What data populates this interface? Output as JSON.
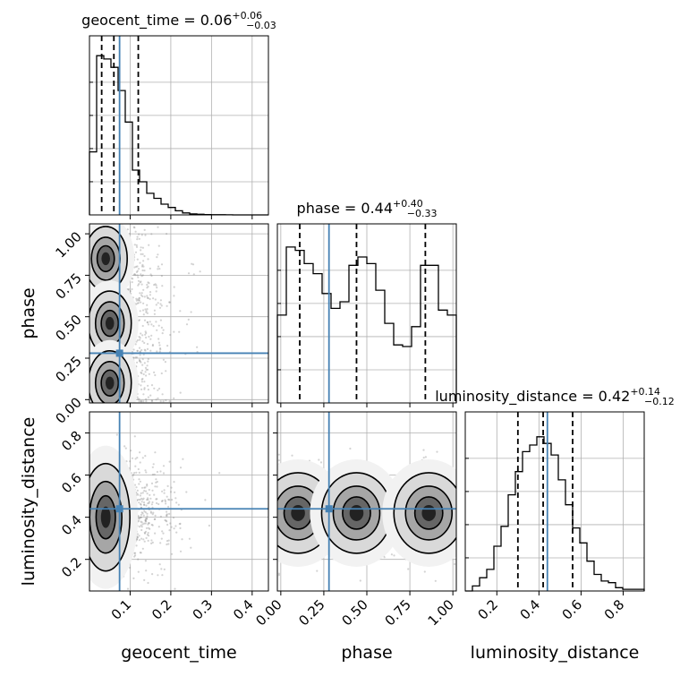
{
  "chart_data": [
    {
      "type": "histogram",
      "parameter": "geocent_time",
      "panel": "diagonal-1",
      "title": {
        "name": "geocent_time",
        "median": "0.06",
        "plus": "+0.06",
        "minus": "−0.03"
      },
      "xlim": [
        0.0,
        0.44
      ],
      "x_ticks": [
        0.1,
        0.2,
        0.3,
        0.4
      ],
      "x_tick_labels": [
        "0.1",
        "0.2",
        "0.3",
        "0.4"
      ],
      "bins": [
        0.0,
        0.0176,
        0.0352,
        0.0528,
        0.0704,
        0.088,
        0.1056,
        0.1232,
        0.1408,
        0.1584,
        0.176,
        0.1936,
        0.2112,
        0.2288,
        0.2464,
        0.264,
        0.2816,
        0.2992,
        0.3168,
        0.3344,
        0.352,
        0.3696,
        0.3872,
        0.4048,
        0.4224,
        0.44
      ],
      "counts": [
        0.38,
        0.96,
        0.94,
        0.89,
        0.75,
        0.56,
        0.27,
        0.2,
        0.13,
        0.1,
        0.065,
        0.045,
        0.025,
        0.012,
        0.006,
        0.004,
        0.002,
        0.001,
        0.001,
        0.0005,
        0.0,
        0.0,
        0.0,
        0.0,
        0.0
      ],
      "quantiles": [
        0.03,
        0.06,
        0.12
      ],
      "truth": 0.074,
      "grid": true
    },
    {
      "type": "histogram",
      "parameter": "phase",
      "panel": "diagonal-2",
      "title": {
        "name": "phase",
        "median": "0.44",
        "plus": "+0.40",
        "minus": "−0.33"
      },
      "xlim": [
        -0.02,
        1.02
      ],
      "x_ticks": [
        0.0,
        0.25,
        0.5,
        0.75,
        1.0
      ],
      "x_tick_labels": [
        "0.00",
        "0.25",
        "0.50",
        "0.75",
        "1.00"
      ],
      "bins": [
        -0.02,
        0.032,
        0.084,
        0.136,
        0.188,
        0.24,
        0.292,
        0.344,
        0.396,
        0.448,
        0.5,
        0.552,
        0.604,
        0.656,
        0.708,
        0.76,
        0.812,
        0.864,
        0.916,
        0.968,
        1.02
      ],
      "counts": [
        0.53,
        0.94,
        0.92,
        0.84,
        0.78,
        0.66,
        0.57,
        0.61,
        0.83,
        0.88,
        0.84,
        0.68,
        0.48,
        0.35,
        0.34,
        0.46,
        0.83,
        0.83,
        0.56,
        0.53
      ],
      "quantiles": [
        0.11,
        0.44,
        0.84
      ],
      "truth": 0.28,
      "grid": true
    },
    {
      "type": "histogram",
      "parameter": "luminosity_distance",
      "panel": "diagonal-3",
      "title": {
        "name": "luminosity_distance",
        "median": "0.42",
        "plus": "+0.14",
        "minus": "−0.12"
      },
      "xlim": [
        0.05,
        0.9
      ],
      "x_ticks": [
        0.2,
        0.4,
        0.6,
        0.8
      ],
      "x_tick_labels": [
        "0.2",
        "0.4",
        "0.6",
        "0.8"
      ],
      "bins": [
        0.05,
        0.084,
        0.118,
        0.152,
        0.186,
        0.22,
        0.254,
        0.288,
        0.322,
        0.356,
        0.39,
        0.424,
        0.458,
        0.492,
        0.526,
        0.56,
        0.594,
        0.628,
        0.662,
        0.696,
        0.73,
        0.764,
        0.798,
        0.832,
        0.866,
        0.9
      ],
      "counts": [
        0.0,
        0.03,
        0.08,
        0.13,
        0.27,
        0.39,
        0.58,
        0.72,
        0.84,
        0.88,
        0.93,
        0.89,
        0.82,
        0.67,
        0.52,
        0.38,
        0.29,
        0.18,
        0.1,
        0.06,
        0.05,
        0.02,
        0.01,
        0.01,
        0.01
      ],
      "quantiles": [
        0.3,
        0.42,
        0.56
      ],
      "truth": 0.44,
      "grid": true
    },
    {
      "type": "scatter",
      "panel": "phase-vs-geocent_time",
      "xlabel": "",
      "ylabel": "phase",
      "xlim": [
        0.0,
        0.44
      ],
      "ylim": [
        -0.02,
        1.06
      ],
      "y_ticks": [
        0.0,
        0.25,
        0.5,
        0.75,
        1.0
      ],
      "y_tick_labels": [
        "0.00",
        "0.25",
        "0.50",
        "0.75",
        "1.00"
      ],
      "truth": [
        0.074,
        0.28
      ],
      "modes": [
        [
          0.04,
          0.85
        ],
        [
          0.05,
          0.46
        ],
        [
          0.05,
          0.1
        ]
      ],
      "grid": true
    },
    {
      "type": "scatter",
      "panel": "luminosity_distance-vs-geocent_time",
      "xlabel": "geocent_time",
      "ylabel": "luminosity_distance",
      "xlim": [
        0.0,
        0.44
      ],
      "ylim": [
        0.05,
        0.9
      ],
      "x_ticks": [
        0.1,
        0.2,
        0.3,
        0.4
      ],
      "x_tick_labels": [
        "0.1",
        "0.2",
        "0.3",
        "0.4"
      ],
      "y_ticks": [
        0.2,
        0.4,
        0.6,
        0.8
      ],
      "y_tick_labels": [
        "0.2",
        "0.4",
        "0.6",
        "0.8"
      ],
      "truth": [
        0.074,
        0.44
      ],
      "modes": [
        [
          0.04,
          0.4
        ]
      ],
      "grid": true
    },
    {
      "type": "scatter",
      "panel": "luminosity_distance-vs-phase",
      "xlabel": "phase",
      "ylabel": "",
      "xlim": [
        -0.02,
        1.02
      ],
      "ylim": [
        0.05,
        0.9
      ],
      "x_ticks": [
        0.0,
        0.25,
        0.5,
        0.75,
        1.0
      ],
      "x_tick_labels": [
        "0.00",
        "0.25",
        "0.50",
        "0.75",
        "1.00"
      ],
      "truth": [
        0.28,
        0.44
      ],
      "modes": [
        [
          0.1,
          0.42
        ],
        [
          0.44,
          0.42
        ],
        [
          0.86,
          0.42
        ]
      ],
      "grid": true
    }
  ],
  "colors": {
    "truth": "#4682b4",
    "contour": "#000000",
    "grid": "#b0b0b0",
    "samples": "#808080"
  }
}
